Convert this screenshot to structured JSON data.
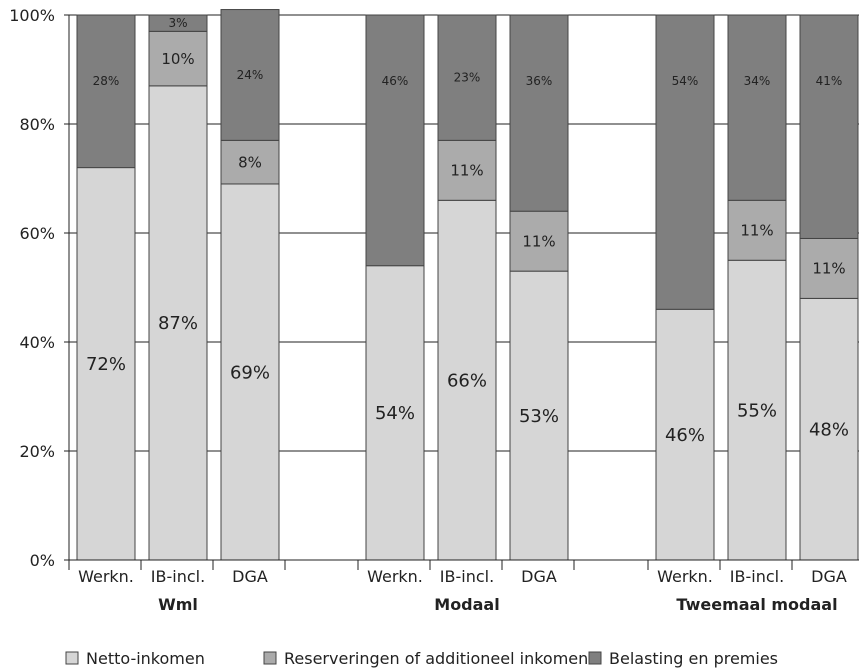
{
  "chart_data": {
    "type": "bar",
    "stacked": true,
    "ylim": [
      0,
      100
    ],
    "yticks": [
      "0%",
      "20%",
      "40%",
      "60%",
      "80%",
      "100%"
    ],
    "grid": true,
    "legend_position": "bottom",
    "groups": [
      {
        "name": "Wml",
        "categories": [
          "Werkn.",
          "IB-incl.",
          "DGA"
        ]
      },
      {
        "name": "Modaal",
        "categories": [
          "Werkn.",
          "IB-incl.",
          "DGA"
        ]
      },
      {
        "name": "Tweemaal modaal",
        "categories": [
          "Werkn.",
          "IB-incl.",
          "DGA"
        ]
      }
    ],
    "series": [
      {
        "name": "Netto-inkomen",
        "color": "#d6d6d6",
        "values": [
          72,
          87,
          69,
          54,
          66,
          53,
          46,
          55,
          48
        ],
        "labels": [
          "72%",
          "87%",
          "69%",
          "54%",
          "66%",
          "53%",
          "46%",
          "55%",
          "48%"
        ]
      },
      {
        "name": "Reserveringen of additioneel inkomen",
        "color": "#ababab",
        "values": [
          0,
          10,
          8,
          0,
          11,
          11,
          0,
          11,
          11
        ],
        "labels": [
          "",
          "10%",
          "8%",
          "",
          "11%",
          "11%",
          "",
          "11%",
          "11%"
        ]
      },
      {
        "name": "Belasting en premies",
        "color": "#7f7f7f",
        "values": [
          28,
          3,
          24,
          46,
          23,
          36,
          54,
          34,
          41
        ],
        "labels": [
          "28%",
          "3%",
          "24%",
          "46%",
          "23%",
          "36%",
          "54%",
          "34%",
          "41%"
        ]
      }
    ]
  }
}
